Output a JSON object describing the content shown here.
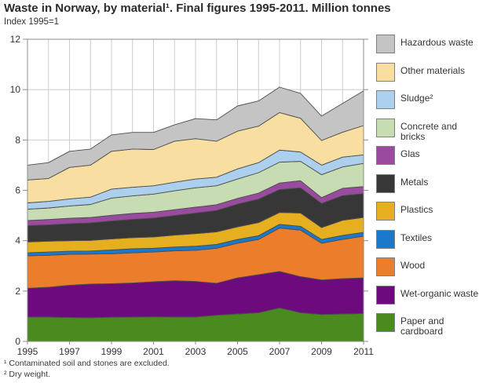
{
  "header": {
    "title": "Waste in Norway, by material¹. Final figures 1995-2011. Million tonnes",
    "subtitle": "Index 1995=1"
  },
  "footnotes": {
    "line1": "¹ Contaminated soil and stones are excluded.",
    "line2": "² Dry weight."
  },
  "chart_data": {
    "type": "area",
    "stacked": true,
    "title": "Waste in Norway, by material¹. Final figures 1995-2011. Million tonnes",
    "subtitle": "Index 1995=1",
    "x": [
      1995,
      1996,
      1997,
      1998,
      1999,
      2000,
      2001,
      2002,
      2003,
      2004,
      2005,
      2006,
      2007,
      2008,
      2009,
      2010,
      2011
    ],
    "x_tick_labels": [
      "1995",
      "1997",
      "1999",
      "2001",
      "2003",
      "2005",
      "2007",
      "2009",
      "2011"
    ],
    "y_ticks": [
      0,
      2,
      4,
      6,
      8,
      10,
      12
    ],
    "ylim": [
      0,
      12
    ],
    "grid": true,
    "legend_position": "right",
    "colors": {
      "grid": "#cccccc",
      "frame": "#8c8c8c",
      "area_outline": "#4d4d4d",
      "tick_text": "#333333"
    },
    "series": [
      {
        "key": "paper-and-cardboard",
        "label": "Paper and cardboard",
        "color": "#4a8a1e",
        "values": [
          0.97,
          0.97,
          0.95,
          0.94,
          0.96,
          0.97,
          0.98,
          0.97,
          0.97,
          1.04,
          1.09,
          1.14,
          1.33,
          1.14,
          1.07,
          1.09,
          1.11
        ]
      },
      {
        "key": "wet-organic-waste",
        "label": "Wet-organic waste",
        "color": "#6d0b7e",
        "values": [
          1.14,
          1.18,
          1.28,
          1.34,
          1.33,
          1.35,
          1.39,
          1.44,
          1.41,
          1.27,
          1.43,
          1.51,
          1.45,
          1.43,
          1.37,
          1.4,
          1.41
        ]
      },
      {
        "key": "wood",
        "label": "Wood",
        "color": "#ec7d2b",
        "values": [
          1.29,
          1.27,
          1.23,
          1.19,
          1.19,
          1.2,
          1.18,
          1.19,
          1.24,
          1.39,
          1.38,
          1.4,
          1.72,
          1.85,
          1.46,
          1.56,
          1.66
        ]
      },
      {
        "key": "textiles",
        "label": "Textiles",
        "color": "#1b79cb",
        "values": [
          0.12,
          0.13,
          0.12,
          0.12,
          0.15,
          0.16,
          0.15,
          0.15,
          0.16,
          0.15,
          0.15,
          0.15,
          0.15,
          0.15,
          0.15,
          0.16,
          0.15
        ]
      },
      {
        "key": "plastics",
        "label": "Plastics",
        "color": "#e6af1f",
        "values": [
          0.43,
          0.43,
          0.42,
          0.42,
          0.44,
          0.44,
          0.45,
          0.47,
          0.5,
          0.5,
          0.5,
          0.52,
          0.47,
          0.53,
          0.47,
          0.6,
          0.59
        ]
      },
      {
        "key": "metals",
        "label": "Metals",
        "color": "#373737",
        "values": [
          0.65,
          0.65,
          0.68,
          0.7,
          0.71,
          0.73,
          0.75,
          0.78,
          0.82,
          0.85,
          0.9,
          0.93,
          0.91,
          1.0,
          0.96,
          0.98,
          0.95
        ]
      },
      {
        "key": "glas",
        "label": "Glas",
        "color": "#9a4ba0",
        "values": [
          0.2,
          0.21,
          0.21,
          0.21,
          0.23,
          0.23,
          0.23,
          0.23,
          0.23,
          0.23,
          0.23,
          0.24,
          0.26,
          0.28,
          0.23,
          0.29,
          0.28
        ]
      },
      {
        "key": "concrete-and-bricks",
        "label": "Concrete and bricks",
        "color": "#c7dcb2",
        "values": [
          0.45,
          0.46,
          0.49,
          0.52,
          0.68,
          0.7,
          0.72,
          0.75,
          0.77,
          0.75,
          0.77,
          0.81,
          0.83,
          0.77,
          0.91,
          0.85,
          0.92
        ]
      },
      {
        "key": "sludge",
        "label": "Sludge²",
        "color": "#accfee",
        "values": [
          0.25,
          0.26,
          0.28,
          0.29,
          0.36,
          0.34,
          0.33,
          0.34,
          0.35,
          0.34,
          0.4,
          0.4,
          0.48,
          0.37,
          0.38,
          0.39,
          0.34
        ]
      },
      {
        "key": "other-materials",
        "label": "Other materials",
        "color": "#f8dfa1",
        "values": [
          0.91,
          0.91,
          1.25,
          1.27,
          1.5,
          1.52,
          1.44,
          1.63,
          1.6,
          1.43,
          1.5,
          1.45,
          1.49,
          1.34,
          0.98,
          0.99,
          1.16
        ]
      },
      {
        "key": "hazardous-waste",
        "label": "Hazardous waste",
        "color": "#c4c4c4",
        "values": [
          0.59,
          0.63,
          0.64,
          0.64,
          0.65,
          0.66,
          0.68,
          0.65,
          0.8,
          0.85,
          1.0,
          1.0,
          1.01,
          0.99,
          0.97,
          1.14,
          1.38
        ]
      }
    ]
  }
}
